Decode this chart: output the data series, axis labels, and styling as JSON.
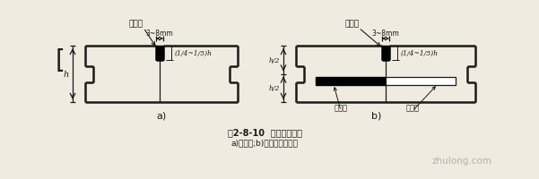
{
  "bg_color": "#f0ebe0",
  "line_color": "#1a1a1a",
  "title_line1": "图2-8-10  横向缩缝构造",
  "title_line2": "a)假缝型;b)假缝加传力杆型",
  "label_a": "a)",
  "label_b": "b)",
  "label_fill": "填缝料",
  "label_fill2": "填缝料",
  "label_dim": "3~8mm",
  "label_dim2": "3~8mm",
  "label_depth": "(1/4~1/5)h",
  "label_depth2": "(1/4~1/5)h",
  "label_h": "h",
  "label_h2": "h/2",
  "label_h3": "h/2",
  "label_tar": "涂沥青",
  "label_rod": "传力杆",
  "watermark": "zhulong.com"
}
